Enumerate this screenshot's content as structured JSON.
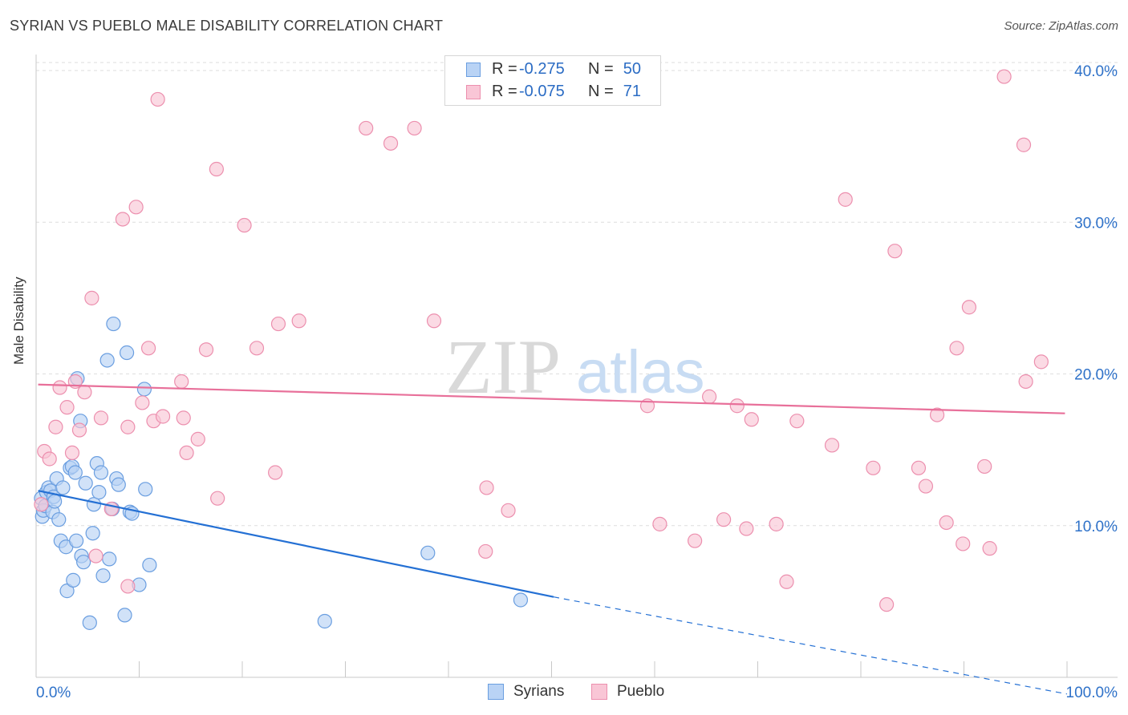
{
  "header": {
    "title": "SYRIAN VS PUEBLO MALE DISABILITY CORRELATION CHART",
    "source": "Source: ZipAtlas.com"
  },
  "watermark": {
    "zip": "ZIP",
    "atlas": "atlas"
  },
  "stats": [
    {
      "r_label": "R =",
      "r_value": "-0.275",
      "n_label": "N =",
      "n_value": "50",
      "fill": "#b9d3f5",
      "stroke": "#6a9ee0"
    },
    {
      "r_label": "R =",
      "r_value": "-0.075",
      "n_label": "N =",
      "n_value": "71",
      "fill": "#f9c6d6",
      "stroke": "#ec8fae"
    }
  ],
  "legend": [
    {
      "label": "Syrians",
      "fill": "#b9d3f5",
      "stroke": "#6a9ee0"
    },
    {
      "label": "Pueblo",
      "fill": "#f9c6d6",
      "stroke": "#ec8fae"
    }
  ],
  "chart_data": {
    "type": "scatter",
    "title": "SYRIAN VS PUEBLO MALE DISABILITY CORRELATION CHART",
    "xlabel": "",
    "ylabel": "Male Disability",
    "xlim": [
      0,
      100
    ],
    "ylim": [
      0,
      40
    ],
    "x_tick_labels": [
      "0.0%",
      "100.0%"
    ],
    "y_ticks": [
      10,
      20,
      30,
      40
    ],
    "y_tick_labels": [
      "10.0%",
      "20.0%",
      "30.0%",
      "40.0%"
    ],
    "grid": true,
    "legend_position": "bottom-center",
    "series": [
      {
        "name": "Syrians",
        "color": "#6a9ee0",
        "fill": "#b9d3f5",
        "line_color": "#2470d4",
        "trend": {
          "x0": 0.2,
          "y0": 12.3,
          "x1": 50.2,
          "y1": 5.3,
          "dash_to_x": 100,
          "dash_to_y": -1.1
        },
        "points": [
          [
            0.5,
            11.8
          ],
          [
            0.6,
            10.6
          ],
          [
            0.7,
            11.0
          ],
          [
            0.9,
            11.3
          ],
          [
            1.0,
            12.2
          ],
          [
            1.2,
            12.5
          ],
          [
            1.4,
            12.3
          ],
          [
            1.6,
            10.9
          ],
          [
            1.7,
            11.9
          ],
          [
            1.8,
            11.6
          ],
          [
            2.0,
            13.1
          ],
          [
            2.2,
            10.4
          ],
          [
            2.4,
            9.0
          ],
          [
            2.6,
            12.5
          ],
          [
            2.9,
            8.6
          ],
          [
            3.0,
            5.7
          ],
          [
            3.3,
            13.8
          ],
          [
            3.5,
            13.9
          ],
          [
            3.6,
            6.4
          ],
          [
            3.8,
            13.5
          ],
          [
            3.9,
            9.0
          ],
          [
            4.0,
            19.7
          ],
          [
            4.3,
            16.9
          ],
          [
            4.4,
            8.0
          ],
          [
            4.6,
            7.6
          ],
          [
            4.8,
            12.8
          ],
          [
            5.2,
            3.6
          ],
          [
            5.5,
            9.5
          ],
          [
            5.6,
            11.4
          ],
          [
            5.9,
            14.1
          ],
          [
            6.1,
            12.2
          ],
          [
            6.3,
            13.5
          ],
          [
            6.5,
            6.7
          ],
          [
            6.9,
            20.9
          ],
          [
            7.1,
            7.8
          ],
          [
            7.4,
            11.1
          ],
          [
            7.5,
            23.3
          ],
          [
            7.8,
            13.1
          ],
          [
            8.0,
            12.7
          ],
          [
            8.6,
            4.1
          ],
          [
            8.8,
            21.4
          ],
          [
            9.1,
            10.9
          ],
          [
            9.3,
            10.8
          ],
          [
            10.0,
            6.1
          ],
          [
            10.5,
            19.0
          ],
          [
            10.6,
            12.4
          ],
          [
            11.0,
            7.4
          ],
          [
            28.0,
            3.7
          ],
          [
            38.0,
            8.2
          ],
          [
            47.0,
            5.1
          ]
        ]
      },
      {
        "name": "Pueblo",
        "color": "#ec8fae",
        "fill": "#f9c6d6",
        "line_color": "#e8709a",
        "trend": {
          "x0": 0.2,
          "y0": 19.3,
          "x1": 99.8,
          "y1": 17.4
        },
        "points": [
          [
            0.5,
            11.4
          ],
          [
            0.8,
            14.9
          ],
          [
            1.3,
            14.4
          ],
          [
            1.9,
            16.5
          ],
          [
            2.3,
            19.1
          ],
          [
            3.0,
            17.8
          ],
          [
            3.5,
            14.8
          ],
          [
            3.8,
            19.5
          ],
          [
            4.2,
            16.3
          ],
          [
            4.7,
            18.8
          ],
          [
            5.4,
            25.0
          ],
          [
            5.8,
            8.0
          ],
          [
            6.3,
            17.1
          ],
          [
            7.3,
            11.1
          ],
          [
            8.4,
            30.2
          ],
          [
            8.9,
            16.5
          ],
          [
            8.9,
            6.0
          ],
          [
            9.7,
            31.0
          ],
          [
            10.3,
            18.1
          ],
          [
            10.9,
            21.7
          ],
          [
            11.4,
            16.9
          ],
          [
            11.8,
            38.1
          ],
          [
            12.3,
            17.2
          ],
          [
            14.1,
            19.5
          ],
          [
            14.3,
            17.1
          ],
          [
            14.6,
            14.8
          ],
          [
            15.7,
            15.7
          ],
          [
            16.5,
            21.6
          ],
          [
            17.5,
            33.5
          ],
          [
            17.6,
            11.8
          ],
          [
            20.2,
            29.8
          ],
          [
            21.4,
            21.7
          ],
          [
            23.2,
            13.5
          ],
          [
            23.5,
            23.3
          ],
          [
            25.5,
            23.5
          ],
          [
            32.0,
            36.2
          ],
          [
            34.4,
            35.2
          ],
          [
            36.7,
            36.2
          ],
          [
            38.6,
            23.5
          ],
          [
            43.6,
            8.3
          ],
          [
            43.7,
            12.5
          ],
          [
            45.8,
            11.0
          ],
          [
            59.3,
            17.9
          ],
          [
            60.5,
            10.1
          ],
          [
            63.9,
            9.0
          ],
          [
            65.3,
            18.5
          ],
          [
            66.7,
            10.4
          ],
          [
            68.0,
            17.9
          ],
          [
            68.9,
            9.8
          ],
          [
            69.4,
            17.0
          ],
          [
            71.8,
            10.1
          ],
          [
            72.8,
            6.3
          ],
          [
            73.8,
            16.9
          ],
          [
            77.2,
            15.3
          ],
          [
            78.5,
            31.5
          ],
          [
            81.2,
            13.8
          ],
          [
            82.5,
            4.8
          ],
          [
            83.3,
            28.1
          ],
          [
            85.6,
            13.8
          ],
          [
            86.3,
            12.6
          ],
          [
            87.4,
            17.3
          ],
          [
            88.3,
            10.2
          ],
          [
            89.3,
            21.7
          ],
          [
            89.9,
            8.8
          ],
          [
            90.5,
            24.4
          ],
          [
            92.0,
            13.9
          ],
          [
            92.5,
            8.5
          ],
          [
            93.9,
            39.6
          ],
          [
            95.8,
            35.1
          ],
          [
            96.0,
            19.5
          ],
          [
            97.5,
            20.8
          ]
        ]
      }
    ]
  }
}
